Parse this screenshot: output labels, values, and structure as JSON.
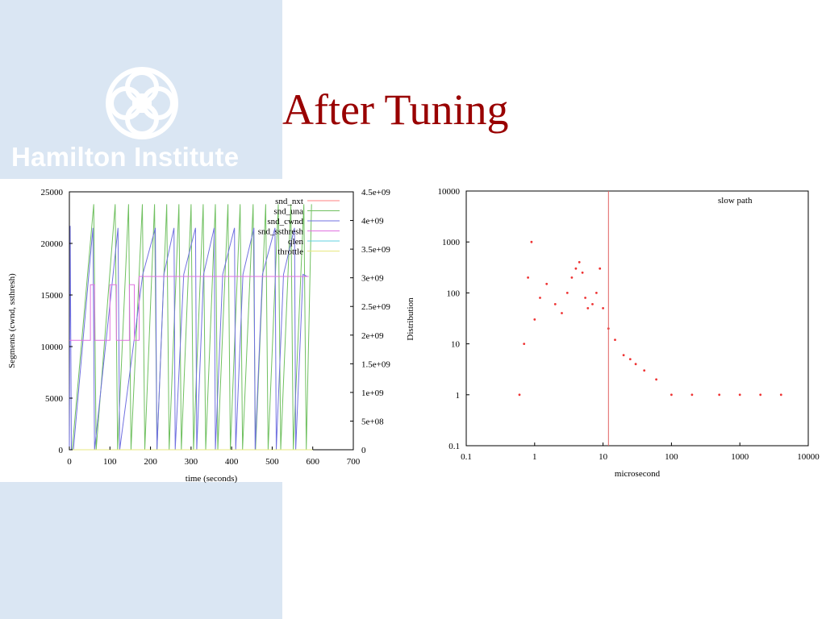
{
  "slide": {
    "title": "After Tuning",
    "logo_text": "Hamilton Institute",
    "accent_color": "#990000",
    "sidebar_color": "#dae6f3"
  },
  "chart_data": [
    {
      "type": "line",
      "title": "",
      "xlabel": "time (seconds)",
      "ylabel": "Segments (cwnd, ssthresh)",
      "y2label": "Distribution",
      "xlim": [
        0,
        700
      ],
      "ylim": [
        0,
        25000
      ],
      "y2lim": [
        0,
        4500000000
      ],
      "xticks": [
        "0",
        "100",
        "200",
        "300",
        "400",
        "500",
        "600",
        "700"
      ],
      "yticks": [
        "0",
        "5000",
        "10000",
        "15000",
        "20000",
        "25000"
      ],
      "y2ticks": [
        "0",
        "5e+08",
        "1e+09",
        "1.5e+09",
        "2e+09",
        "2.5e+09",
        "3e+09",
        "3.5e+09",
        "4e+09",
        "4.5e+09"
      ],
      "legend_position": "top-right",
      "grid": false,
      "series": [
        {
          "name": "snd_nxt",
          "color": "#ff8080",
          "x": [
            0,
            600
          ],
          "y": [
            0,
            0
          ]
        },
        {
          "name": "snd_una",
          "color": "#70c060",
          "x": [
            0,
            7,
            60,
            66,
            113,
            119,
            146,
            152,
            180,
            186,
            210,
            216,
            240,
            246,
            270,
            276,
            300,
            306,
            330,
            336,
            360,
            366,
            391,
            397,
            421,
            427,
            453,
            459,
            484,
            490,
            515,
            521,
            546,
            552,
            578,
            584,
            597
          ],
          "y": [
            0,
            0,
            23800,
            0,
            23800,
            0,
            23800,
            0,
            23800,
            0,
            23800,
            0,
            23800,
            0,
            23800,
            0,
            23800,
            0,
            23800,
            0,
            23800,
            0,
            23800,
            0,
            23800,
            0,
            23800,
            0,
            23800,
            0,
            23800,
            0,
            23800,
            0,
            23800,
            0,
            23800
          ]
        },
        {
          "name": "snd_cwnd",
          "color": "#7070e0",
          "x": [
            0,
            2,
            5,
            10,
            58,
            62,
            120,
            124,
            181,
            212,
            216,
            233,
            258,
            261,
            282,
            311,
            314,
            331,
            357,
            360,
            378,
            407,
            410,
            428,
            455,
            458,
            476,
            507,
            510,
            528,
            555,
            558,
            576,
            586
          ],
          "y": [
            0,
            21700,
            0,
            0,
            21500,
            0,
            21500,
            0,
            17000,
            21500,
            0,
            17000,
            21500,
            0,
            17000,
            21500,
            0,
            17000,
            21500,
            0,
            17000,
            21500,
            0,
            17000,
            21500,
            0,
            17000,
            21500,
            0,
            17000,
            21500,
            0,
            17000,
            16800
          ]
        },
        {
          "name": "snd_ssthresh",
          "color": "#e070e0",
          "x": [
            0,
            8,
            8,
            52,
            52,
            62,
            62,
            100,
            100,
            116,
            116,
            148,
            148,
            160,
            160,
            172,
            172,
            590
          ],
          "y": [
            10600,
            10600,
            10600,
            10600,
            16000,
            16000,
            10600,
            10600,
            16000,
            16000,
            10600,
            10600,
            16000,
            16000,
            10600,
            10600,
            16800,
            16800
          ]
        },
        {
          "name": "qlen",
          "color": "#60d0e0",
          "x": [
            0,
            600
          ],
          "y": [
            0,
            0
          ]
        },
        {
          "name": "throttle",
          "color": "#e8e880",
          "x": [
            0,
            600
          ],
          "y": [
            0,
            0
          ]
        }
      ]
    },
    {
      "type": "scatter",
      "title": "",
      "xlabel": "microsecond",
      "ylabel": "",
      "xscale": "log",
      "yscale": "log",
      "xlim": [
        0.1,
        10000
      ],
      "ylim": [
        0.1,
        10000
      ],
      "xticks": [
        "0.1",
        "1",
        "10",
        "100",
        "1000",
        "10000"
      ],
      "yticks": [
        "0.1",
        "1",
        "10",
        "100",
        "1000",
        "10000"
      ],
      "legend_position": "top-right",
      "grid": false,
      "series": [
        {
          "name": "slow path",
          "color": "#ee3333",
          "x": [
            0.6,
            0.7,
            0.8,
            0.9,
            1.0,
            1.2,
            1.5,
            2.0,
            2.5,
            3.0,
            3.5,
            4.0,
            4.5,
            5.0,
            5.5,
            6.0,
            7.0,
            8.0,
            9.0,
            10,
            12,
            15,
            20,
            25,
            30,
            40,
            60,
            100,
            200,
            500,
            1000,
            2000,
            4000
          ],
          "y": [
            1,
            10,
            200,
            1000,
            30,
            80,
            150,
            60,
            40,
            100,
            200,
            300,
            400,
            250,
            80,
            50,
            60,
            100,
            300,
            50,
            20,
            12,
            6,
            5,
            4,
            3,
            2,
            1,
            1,
            1,
            1,
            1,
            1
          ]
        }
      ],
      "reference_line": {
        "x": 12,
        "color": "#e06060"
      }
    }
  ]
}
